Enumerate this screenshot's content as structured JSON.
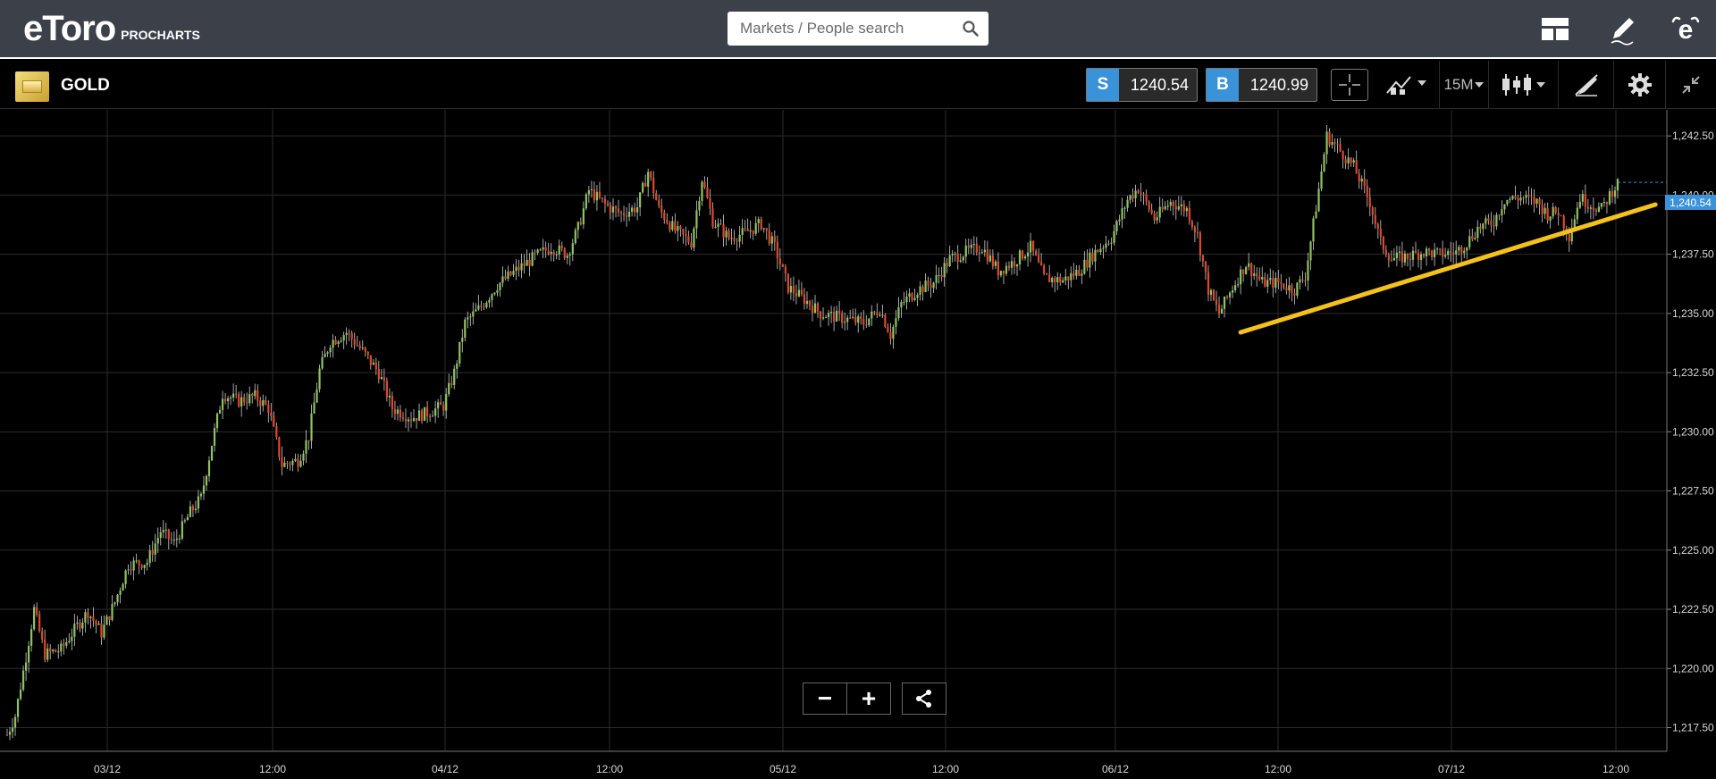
{
  "header": {
    "logo_text": "eToro",
    "logo_subtitle": "PROCHARTS",
    "search": {
      "placeholder": "Markets / People search",
      "value": ""
    },
    "icons": [
      "layout-icon",
      "pencil-icon",
      "etoro-profile-icon"
    ]
  },
  "instrument": {
    "name": "GOLD",
    "icon": "gold-bar-icon",
    "sell": {
      "label": "S",
      "price": "1240.54"
    },
    "buy": {
      "label": "B",
      "price": "1240.99"
    },
    "timeframe": "15M",
    "tools": [
      "crosshair-icon",
      "chart-type-icon",
      "timeframe-dropdown",
      "candlestick-icon",
      "draw-tools-icon",
      "gear-icon",
      "collapse-icon"
    ]
  },
  "zoom": {
    "minus": "−",
    "plus": "+",
    "share_icon": "share-icon"
  },
  "current_price_tag": "1,240.54",
  "colors": {
    "up": "#8ec45f",
    "down": "#e2472a",
    "trendline": "#f4c21b",
    "accent": "#3a93d8"
  },
  "chart_data": {
    "type": "candlestick",
    "title": "",
    "xlabel": "",
    "ylabel": "",
    "ylim": [
      1216.5,
      1243.6
    ],
    "y_ticks": [
      "1,242.50",
      "1,240.00",
      "1,237.50",
      "1,235.00",
      "1,232.50",
      "1,230.00",
      "1,227.50",
      "1,225.00",
      "1,222.50",
      "1,220.00",
      "1,217.50"
    ],
    "y_tick_values": [
      1242.5,
      1240,
      1237.5,
      1235,
      1232.5,
      1230,
      1227.5,
      1225,
      1222.5,
      1220,
      1217.5
    ],
    "x_ticks": [
      "03/12",
      "12:00",
      "04/12",
      "12:00",
      "05/12",
      "12:00",
      "06/12",
      "12:00",
      "07/12",
      "12:00"
    ],
    "interval": "15M",
    "price_path": [
      {
        "t": 0,
        "p": 1217.2
      },
      {
        "t": 3,
        "p": 1218.0
      },
      {
        "t": 7,
        "p": 1220.5
      },
      {
        "t": 10,
        "p": 1222.5
      },
      {
        "t": 14,
        "p": 1220.6
      },
      {
        "t": 20,
        "p": 1220.8
      },
      {
        "t": 26,
        "p": 1221.8
      },
      {
        "t": 30,
        "p": 1222.4
      },
      {
        "t": 35,
        "p": 1221.5
      },
      {
        "t": 40,
        "p": 1222.8
      },
      {
        "t": 45,
        "p": 1224.4
      },
      {
        "t": 52,
        "p": 1224.5
      },
      {
        "t": 57,
        "p": 1225.8
      },
      {
        "t": 62,
        "p": 1225.3
      },
      {
        "t": 68,
        "p": 1226.6
      },
      {
        "t": 72,
        "p": 1227.2
      },
      {
        "t": 76,
        "p": 1229.5
      },
      {
        "t": 80,
        "p": 1231.6
      },
      {
        "t": 86,
        "p": 1231.3
      },
      {
        "t": 92,
        "p": 1231.5
      },
      {
        "t": 97,
        "p": 1231.0
      },
      {
        "t": 102,
        "p": 1228.6
      },
      {
        "t": 108,
        "p": 1228.8
      },
      {
        "t": 112,
        "p": 1229.8
      },
      {
        "t": 116,
        "p": 1232.6
      },
      {
        "t": 120,
        "p": 1233.8
      },
      {
        "t": 126,
        "p": 1234.2
      },
      {
        "t": 132,
        "p": 1233.4
      },
      {
        "t": 138,
        "p": 1232.5
      },
      {
        "t": 143,
        "p": 1231.0
      },
      {
        "t": 150,
        "p": 1230.6
      },
      {
        "t": 156,
        "p": 1230.8
      },
      {
        "t": 162,
        "p": 1231.1
      },
      {
        "t": 166,
        "p": 1232.5
      },
      {
        "t": 170,
        "p": 1234.6
      },
      {
        "t": 176,
        "p": 1235.3
      },
      {
        "t": 182,
        "p": 1236.2
      },
      {
        "t": 190,
        "p": 1236.9
      },
      {
        "t": 196,
        "p": 1237.4
      },
      {
        "t": 202,
        "p": 1237.8
      },
      {
        "t": 208,
        "p": 1237.5
      },
      {
        "t": 212,
        "p": 1238.6
      },
      {
        "t": 216,
        "p": 1240.2
      },
      {
        "t": 222,
        "p": 1239.6
      },
      {
        "t": 228,
        "p": 1239.2
      },
      {
        "t": 234,
        "p": 1239.5
      },
      {
        "t": 238,
        "p": 1241.0
      },
      {
        "t": 242,
        "p": 1239.4
      },
      {
        "t": 248,
        "p": 1238.5
      },
      {
        "t": 254,
        "p": 1238.0
      },
      {
        "t": 258,
        "p": 1240.7
      },
      {
        "t": 262,
        "p": 1238.9
      },
      {
        "t": 268,
        "p": 1238.2
      },
      {
        "t": 274,
        "p": 1238.4
      },
      {
        "t": 280,
        "p": 1238.8
      },
      {
        "t": 285,
        "p": 1237.8
      },
      {
        "t": 290,
        "p": 1236.1
      },
      {
        "t": 296,
        "p": 1235.6
      },
      {
        "t": 302,
        "p": 1235.0
      },
      {
        "t": 310,
        "p": 1234.8
      },
      {
        "t": 318,
        "p": 1234.6
      },
      {
        "t": 324,
        "p": 1235.2
      },
      {
        "t": 328,
        "p": 1234.1
      },
      {
        "t": 332,
        "p": 1235.4
      },
      {
        "t": 338,
        "p": 1236.0
      },
      {
        "t": 344,
        "p": 1236.3
      },
      {
        "t": 350,
        "p": 1237.3
      },
      {
        "t": 356,
        "p": 1237.6
      },
      {
        "t": 362,
        "p": 1237.8
      },
      {
        "t": 368,
        "p": 1236.8
      },
      {
        "t": 374,
        "p": 1237.2
      },
      {
        "t": 380,
        "p": 1237.8
      },
      {
        "t": 385,
        "p": 1236.5
      },
      {
        "t": 392,
        "p": 1236.4
      },
      {
        "t": 398,
        "p": 1236.8
      },
      {
        "t": 404,
        "p": 1237.6
      },
      {
        "t": 410,
        "p": 1238.2
      },
      {
        "t": 416,
        "p": 1239.8
      },
      {
        "t": 420,
        "p": 1240.3
      },
      {
        "t": 426,
        "p": 1239.0
      },
      {
        "t": 432,
        "p": 1239.7
      },
      {
        "t": 438,
        "p": 1239.4
      },
      {
        "t": 442,
        "p": 1238.3
      },
      {
        "t": 446,
        "p": 1236.0
      },
      {
        "t": 450,
        "p": 1235.0
      },
      {
        "t": 455,
        "p": 1236.1
      },
      {
        "t": 460,
        "p": 1237.1
      },
      {
        "t": 466,
        "p": 1236.3
      },
      {
        "t": 472,
        "p": 1236.3
      },
      {
        "t": 478,
        "p": 1236.0
      },
      {
        "t": 482,
        "p": 1236.6
      },
      {
        "t": 486,
        "p": 1239.5
      },
      {
        "t": 490,
        "p": 1242.5
      },
      {
        "t": 494,
        "p": 1242.0
      },
      {
        "t": 500,
        "p": 1241.2
      },
      {
        "t": 506,
        "p": 1239.7
      },
      {
        "t": 510,
        "p": 1238.0
      },
      {
        "t": 514,
        "p": 1237.3
      },
      {
        "t": 520,
        "p": 1237.4
      },
      {
        "t": 526,
        "p": 1237.6
      },
      {
        "t": 532,
        "p": 1237.5
      },
      {
        "t": 538,
        "p": 1237.6
      },
      {
        "t": 542,
        "p": 1238.0
      },
      {
        "t": 546,
        "p": 1238.6
      },
      {
        "t": 552,
        "p": 1238.9
      },
      {
        "t": 556,
        "p": 1239.8
      },
      {
        "t": 562,
        "p": 1239.9
      },
      {
        "t": 568,
        "p": 1239.7
      },
      {
        "t": 572,
        "p": 1239.2
      },
      {
        "t": 576,
        "p": 1239.3
      },
      {
        "t": 580,
        "p": 1238.3
      },
      {
        "t": 584,
        "p": 1239.9
      },
      {
        "t": 588,
        "p": 1239.6
      },
      {
        "t": 592,
        "p": 1239.4
      },
      {
        "t": 596,
        "p": 1240.2
      },
      {
        "t": 598,
        "p": 1240.5
      }
    ],
    "trendline": {
      "start": {
        "t": 458,
        "p": 1234.2
      },
      "end": {
        "t": 612,
        "p": 1239.6
      }
    }
  }
}
